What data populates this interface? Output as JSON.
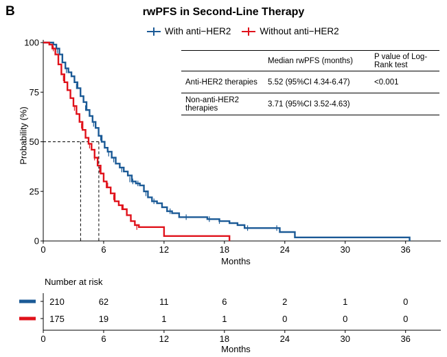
{
  "figure": {
    "panel_letter": "B",
    "title": "rwPFS in Second-Line Therapy"
  },
  "colors": {
    "with": "#1b5a96",
    "without": "#e0121b",
    "axis": "#000000"
  },
  "chart_data": {
    "type": "line",
    "title": "rwPFS in Second-Line Therapy",
    "xlabel": "Months",
    "ylabel": "Probability (%)",
    "xlim": [
      0,
      39.5
    ],
    "ylim": [
      0,
      100
    ],
    "xticks": [
      0,
      6,
      12,
      18,
      24,
      30,
      36
    ],
    "yticks": [
      0,
      25,
      50,
      75,
      100
    ],
    "legend_position": "top",
    "series": [
      {
        "name": "With anti−HER2",
        "color": "#1b5a96",
        "steps": [
          [
            0,
            100
          ],
          [
            0.7,
            100
          ],
          [
            1,
            99
          ],
          [
            1.3,
            97
          ],
          [
            1.6,
            94
          ],
          [
            1.9,
            90
          ],
          [
            2.2,
            87
          ],
          [
            2.5,
            85
          ],
          [
            2.8,
            83
          ],
          [
            3.1,
            80
          ],
          [
            3.4,
            77
          ],
          [
            3.7,
            73
          ],
          [
            4,
            70
          ],
          [
            4.3,
            66
          ],
          [
            4.6,
            63
          ],
          [
            4.9,
            60
          ],
          [
            5.2,
            57
          ],
          [
            5.5,
            53
          ],
          [
            5.8,
            50
          ],
          [
            6.1,
            47
          ],
          [
            6.4,
            45
          ],
          [
            6.8,
            42
          ],
          [
            7.2,
            39
          ],
          [
            7.6,
            37
          ],
          [
            8,
            35
          ],
          [
            8.4,
            33
          ],
          [
            8.8,
            30
          ],
          [
            9.2,
            29
          ],
          [
            9.6,
            28
          ],
          [
            10,
            25
          ],
          [
            10.4,
            22
          ],
          [
            10.8,
            20
          ],
          [
            11.3,
            19
          ],
          [
            11.8,
            17
          ],
          [
            12.3,
            15
          ],
          [
            12.8,
            14
          ],
          [
            13.5,
            12
          ],
          [
            15,
            12
          ],
          [
            16.3,
            11
          ],
          [
            17.5,
            10
          ],
          [
            18.5,
            9
          ],
          [
            19.3,
            8
          ],
          [
            20,
            6.5
          ],
          [
            23.4,
            6.5
          ],
          [
            23.5,
            4.5
          ],
          [
            25,
            1.8
          ],
          [
            36.4,
            1.8
          ],
          [
            36.4,
            0
          ]
        ],
        "censor_marks": [
          [
            1.4,
            96
          ],
          [
            2.3,
            86
          ],
          [
            3.3,
            78
          ],
          [
            4.2,
            67
          ],
          [
            5.0,
            59
          ],
          [
            5.7,
            52
          ],
          [
            6.5,
            44
          ],
          [
            7.0,
            41
          ],
          [
            7.8,
            36
          ],
          [
            8.6,
            31
          ],
          [
            8.9,
            30
          ],
          [
            9.4,
            29
          ],
          [
            10.2,
            24
          ],
          [
            11.0,
            20
          ],
          [
            12.6,
            15
          ],
          [
            14.2,
            12
          ],
          [
            16.5,
            11
          ],
          [
            17.5,
            10
          ],
          [
            20.3,
            6.5
          ],
          [
            23.2,
            6.5
          ]
        ]
      },
      {
        "name": "Without anti−HER2",
        "color": "#e0121b",
        "steps": [
          [
            0,
            100
          ],
          [
            0.6,
            99
          ],
          [
            0.9,
            97
          ],
          [
            1.2,
            94
          ],
          [
            1.5,
            89
          ],
          [
            1.8,
            84
          ],
          [
            2.1,
            80
          ],
          [
            2.4,
            76
          ],
          [
            2.7,
            72
          ],
          [
            3,
            68
          ],
          [
            3.3,
            64
          ],
          [
            3.6,
            60
          ],
          [
            3.9,
            56
          ],
          [
            4.2,
            52
          ],
          [
            4.5,
            49
          ],
          [
            4.8,
            46
          ],
          [
            5.1,
            42
          ],
          [
            5.4,
            38
          ],
          [
            5.7,
            34
          ],
          [
            6,
            30
          ],
          [
            6.3,
            27
          ],
          [
            6.7,
            24
          ],
          [
            7.1,
            20
          ],
          [
            7.5,
            18
          ],
          [
            7.9,
            16
          ],
          [
            8.3,
            13
          ],
          [
            8.7,
            10
          ],
          [
            9.1,
            8
          ],
          [
            9.5,
            7
          ],
          [
            10.5,
            7
          ],
          [
            11.5,
            7
          ],
          [
            12,
            2.5
          ],
          [
            18.5,
            2.5
          ],
          [
            18.5,
            0
          ]
        ],
        "censor_marks": [
          [
            1.0,
            97
          ],
          [
            2.0,
            82
          ],
          [
            3.1,
            67
          ],
          [
            3.8,
            58
          ],
          [
            4.6,
            48
          ],
          [
            5.1,
            42
          ],
          [
            5.6,
            36
          ],
          [
            6.4,
            28
          ],
          [
            7.0,
            22
          ],
          [
            7.8,
            17
          ],
          [
            9.3,
            7
          ]
        ]
      }
    ],
    "median_lines": [
      {
        "x": 5.52,
        "y": 50
      },
      {
        "x": 3.71,
        "y": 50
      }
    ],
    "risk_table": {
      "title": "Number at risk",
      "xlabel": "Months",
      "times": [
        0,
        6,
        12,
        18,
        24,
        30,
        36
      ],
      "rows": [
        {
          "series": "With anti−HER2",
          "color": "#1b5a96",
          "values": [
            210,
            62,
            11,
            6,
            2,
            1,
            0
          ]
        },
        {
          "series": "Without anti−HER2",
          "color": "#e0121b",
          "values": [
            175,
            19,
            1,
            1,
            0,
            0,
            0
          ]
        }
      ]
    }
  },
  "stats_table": {
    "headers": [
      "",
      "Median rwPFS (months)",
      "P value of Log-Rank test"
    ],
    "rows": [
      {
        "label": "Anti-HER2 therapies",
        "median": "5.52 (95%CI 4.34-6.47)",
        "p": "<0.001"
      },
      {
        "label": "Non-anti-HER2 therapies",
        "median": "3.71 (95%CI 3.52-4.63)",
        "p": ""
      }
    ]
  }
}
